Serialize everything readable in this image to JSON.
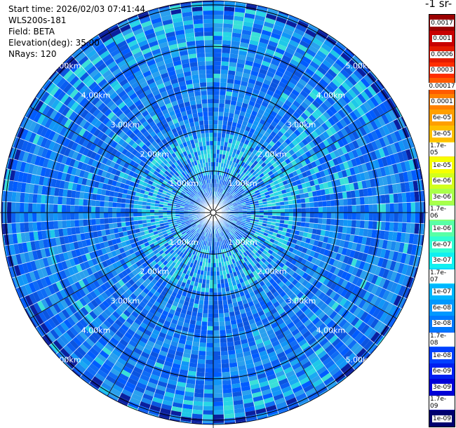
{
  "info": {
    "start_time": "Start time: 2026/02/03 07:41:44",
    "instrument": "WLS200s-181",
    "field": "Field: BETA",
    "elevation": "Elevation(deg): 35.00",
    "nrays": "NRays: 120"
  },
  "units_label": "-1 sr-",
  "chart_data": {
    "type": "heatmap",
    "projection": "polar-ppi",
    "field": "BETA",
    "n_rays": 120,
    "range_rings_km": [
      1,
      2,
      3,
      4,
      5
    ],
    "range_labels": [
      "1.00km",
      "2.00km",
      "3.00km",
      "4.00km",
      "5.00km"
    ],
    "max_range_km": 5.1,
    "dominant_value": "1.7e-08",
    "enhanced_value": "1.7e-07",
    "colorbar": {
      "levels": [
        "0.0017",
        "0.001",
        "0.0006",
        "0.0003",
        "0.00017",
        "0.0001",
        "6e-05",
        "3e-05",
        "1.7e-05",
        "1e-05",
        "6e-06",
        "3e-06",
        "1.7e-06",
        "1e-06",
        "6e-07",
        "3e-07",
        "1.7e-07",
        "1e-07",
        "6e-08",
        "3e-08",
        "1.7e-08",
        "1e-08",
        "6e-09",
        "3e-09",
        "1.7e-09",
        "1e-09"
      ],
      "colors": [
        "#9a0000",
        "#c80000",
        "#e41a00",
        "#ff2e00",
        "#ff5a00",
        "#ff8000",
        "#ff9f00",
        "#ffbf00",
        "#ffde00",
        "#f5ff00",
        "#d2ff1c",
        "#a8ff4a",
        "#80ff7a",
        "#58ffa6",
        "#30ffd2",
        "#10f0f0",
        "#00d8ff",
        "#00b6ff",
        "#0098ff",
        "#0078ff",
        "#005cff",
        "#0040ff",
        "#0020f0",
        "#0000d8",
        "#0000a8",
        "#00006e"
      ]
    }
  }
}
